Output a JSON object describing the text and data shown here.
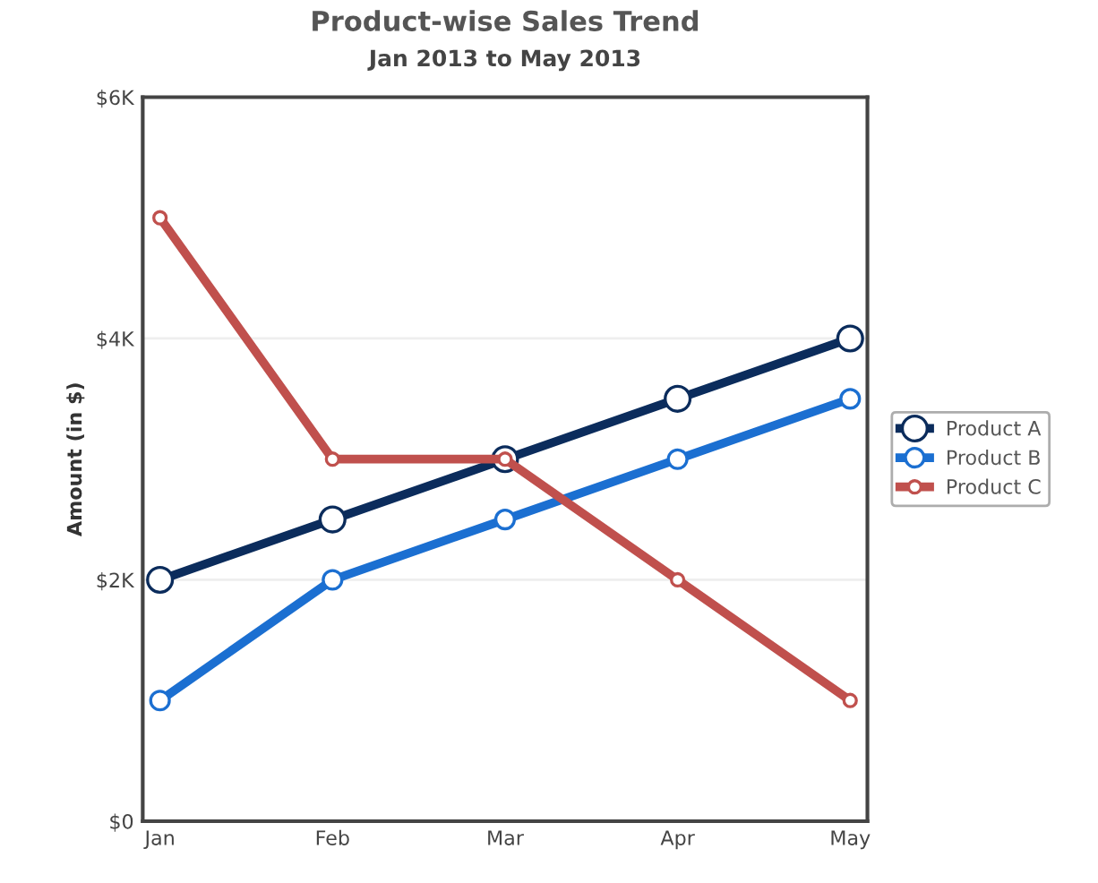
{
  "chart_data": {
    "type": "line",
    "title": "Product-wise Sales Trend",
    "subtitle": "Jan 2013 to May 2013",
    "ylabel": "Amount (in $)",
    "categories": [
      "Jan",
      "Feb",
      "Mar",
      "Apr",
      "May"
    ],
    "series": [
      {
        "name": "Product A",
        "color": "#0b2c5c",
        "values": [
          2000,
          2500,
          3000,
          3500,
          4000
        ]
      },
      {
        "name": "Product B",
        "color": "#1b6fd1",
        "values": [
          1000,
          2000,
          2500,
          3000,
          3500
        ]
      },
      {
        "name": "Product C",
        "color": "#c0504d",
        "values": [
          5000,
          3000,
          3000,
          2000,
          1000
        ]
      }
    ],
    "ylim": [
      0,
      6000
    ],
    "yticks": [
      {
        "value": 0,
        "label": "$0"
      },
      {
        "value": 2000,
        "label": "$2K"
      },
      {
        "value": 4000,
        "label": "$4K"
      },
      {
        "value": 6000,
        "label": "$6K"
      }
    ],
    "grid": "y",
    "legend": "right",
    "marker": "circle",
    "line_style": "solid"
  }
}
